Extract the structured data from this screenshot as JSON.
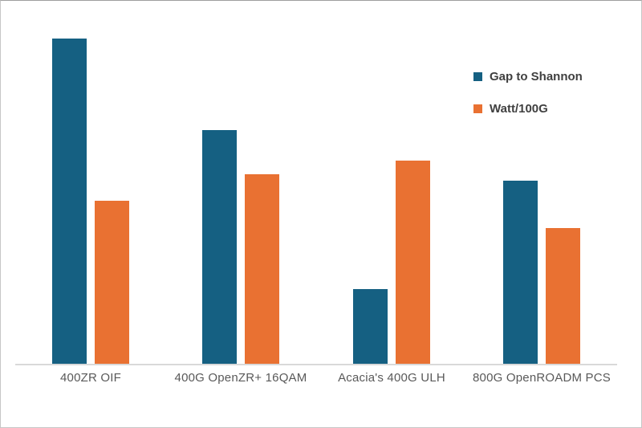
{
  "chart_data": {
    "type": "bar",
    "title": "",
    "categories": [
      "400ZR OIF",
      "400G OpenZR+ 16QAM",
      "Acacia's 400G ULH",
      "800G OpenROADM PCS"
    ],
    "series": [
      {
        "name": "Gap to Shannon",
        "color": "#156082",
        "values": [
          9.6,
          6.9,
          2.2,
          5.4
        ]
      },
      {
        "name": "Watt/100G",
        "color": "#E97132",
        "values": [
          4.8,
          5.6,
          6.0,
          4.0
        ]
      }
    ],
    "ylim": [
      0,
      10
    ],
    "xlabel": "",
    "ylabel": "",
    "grid": false,
    "y_axis_visible": false,
    "legend_position": "upper right"
  },
  "colors": {
    "background": "#ffffff",
    "axis_line": "#d9d9d9",
    "category_label_text": "#595959",
    "legend_text": "#404040"
  }
}
